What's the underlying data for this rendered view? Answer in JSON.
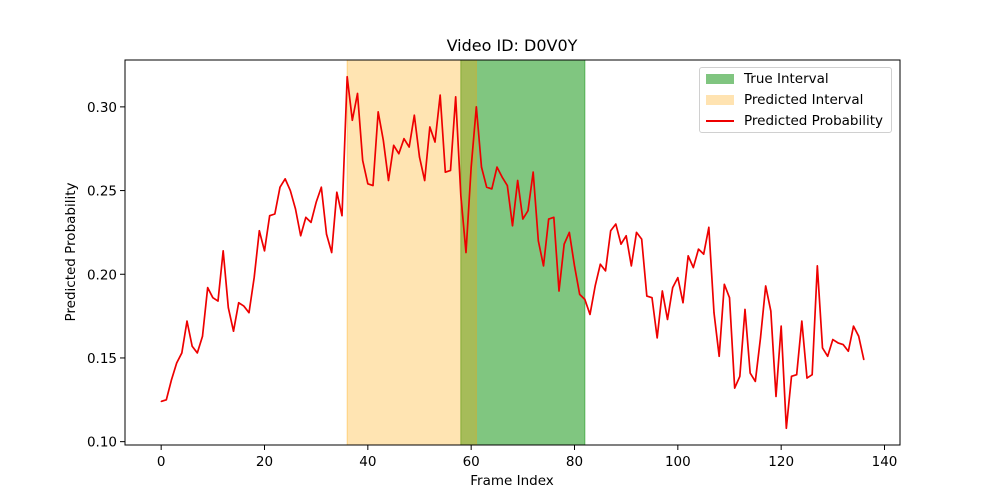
{
  "chart_data": {
    "type": "line",
    "title": "Video ID: D0V0Y",
    "xlabel": "Frame Index",
    "ylabel": "Predicted Probability",
    "xlim": [
      -7,
      143
    ],
    "ylim": [
      0.098,
      0.328
    ],
    "xticks": [
      0,
      20,
      40,
      60,
      80,
      100,
      120,
      140
    ],
    "yticks": [
      0.1,
      0.15,
      0.2,
      0.25,
      0.3
    ],
    "ytick_labels": [
      "0.10",
      "0.15",
      "0.20",
      "0.25",
      "0.30"
    ],
    "grid": false,
    "legend_position": "top-right",
    "intervals": [
      {
        "name": "True Interval",
        "start": 58,
        "end": 82,
        "color": "#2ca02c",
        "opacity": 0.6
      },
      {
        "name": "Predicted Interval",
        "start": 36,
        "end": 61,
        "color": "#ffa500",
        "opacity": 0.3
      }
    ],
    "series": [
      {
        "name": "Predicted Probability",
        "color": "#ee0000",
        "x_start": 0,
        "values": [
          0.124,
          0.125,
          0.137,
          0.147,
          0.153,
          0.172,
          0.157,
          0.153,
          0.163,
          0.192,
          0.186,
          0.184,
          0.214,
          0.18,
          0.166,
          0.183,
          0.181,
          0.177,
          0.198,
          0.226,
          0.214,
          0.235,
          0.236,
          0.252,
          0.257,
          0.25,
          0.239,
          0.223,
          0.234,
          0.231,
          0.243,
          0.252,
          0.224,
          0.213,
          0.249,
          0.235,
          0.318,
          0.292,
          0.308,
          0.268,
          0.254,
          0.253,
          0.297,
          0.28,
          0.256,
          0.277,
          0.272,
          0.281,
          0.276,
          0.295,
          0.27,
          0.256,
          0.288,
          0.279,
          0.307,
          0.261,
          0.262,
          0.306,
          0.247,
          0.213,
          0.264,
          0.3,
          0.264,
          0.252,
          0.251,
          0.264,
          0.258,
          0.253,
          0.229,
          0.256,
          0.233,
          0.238,
          0.261,
          0.22,
          0.205,
          0.233,
          0.234,
          0.19,
          0.218,
          0.225,
          0.205,
          0.188,
          0.185,
          0.176,
          0.193,
          0.206,
          0.202,
          0.226,
          0.23,
          0.218,
          0.223,
          0.205,
          0.225,
          0.221,
          0.187,
          0.186,
          0.162,
          0.19,
          0.173,
          0.192,
          0.198,
          0.183,
          0.211,
          0.204,
          0.215,
          0.212,
          0.228,
          0.177,
          0.151,
          0.194,
          0.186,
          0.132,
          0.139,
          0.179,
          0.141,
          0.136,
          0.162,
          0.193,
          0.178,
          0.127,
          0.169,
          0.108,
          0.139,
          0.14,
          0.172,
          0.138,
          0.14,
          0.205,
          0.156,
          0.151,
          0.161,
          0.159,
          0.158,
          0.154,
          0.169,
          0.163,
          0.149
        ]
      }
    ]
  }
}
